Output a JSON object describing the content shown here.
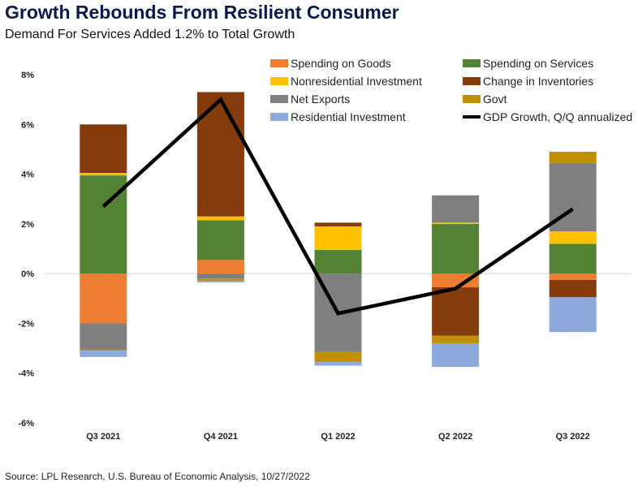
{
  "title": "Growth Rebounds From Resilient Consumer",
  "subtitle": "Demand For Services Added 1.2% to Total Growth",
  "source": "Source: LPL Research, U.S. Bureau of Economic Analysis, 10/27/2022",
  "chart_data": {
    "type": "bar",
    "stacked": true,
    "categories": [
      "Q3 2021",
      "Q4 2021",
      "Q1 2022",
      "Q2 2022",
      "Q3 2022"
    ],
    "ylim": [
      -6,
      8
    ],
    "yticks": [
      -6,
      -4,
      -2,
      0,
      2,
      4,
      6,
      8
    ],
    "ytick_labels": [
      "-6%",
      "-4%",
      "-2%",
      "0%",
      "2%",
      "4%",
      "6%",
      "8%"
    ],
    "legend_placement": "top-right",
    "grid": false,
    "series": [
      {
        "name": "Spending on Goods",
        "color": "#ED7D31",
        "values": [
          -2.0,
          0.55,
          0.0,
          -0.55,
          -0.25
        ]
      },
      {
        "name": "Spending on Services",
        "color": "#548235",
        "values": [
          3.95,
          1.6,
          0.95,
          2.0,
          1.2
        ]
      },
      {
        "name": "Nonresidential Investment",
        "color": "#FFC000",
        "values": [
          0.1,
          0.15,
          0.95,
          0.05,
          0.5
        ]
      },
      {
        "name": "Change in Inventories",
        "color": "#843C0C",
        "values": [
          1.95,
          5.0,
          0.15,
          -1.95,
          -0.7
        ]
      },
      {
        "name": "Net Exports",
        "color": "#7F7F7F",
        "values": [
          -1.05,
          -0.2,
          -3.15,
          1.1,
          2.75
        ]
      },
      {
        "name": "Govt",
        "color": "#BF9000",
        "values": [
          -0.05,
          -0.1,
          -0.4,
          -0.3,
          0.45
        ]
      },
      {
        "name": "Residential Investment",
        "color": "#8EA9DB",
        "values": [
          -0.25,
          -0.05,
          -0.15,
          -0.95,
          -1.4
        ]
      }
    ],
    "line": {
      "name": "GDP Growth, Q/Q annualized",
      "color": "#000000",
      "values": [
        2.7,
        7.0,
        -1.6,
        -0.6,
        2.6
      ]
    }
  }
}
